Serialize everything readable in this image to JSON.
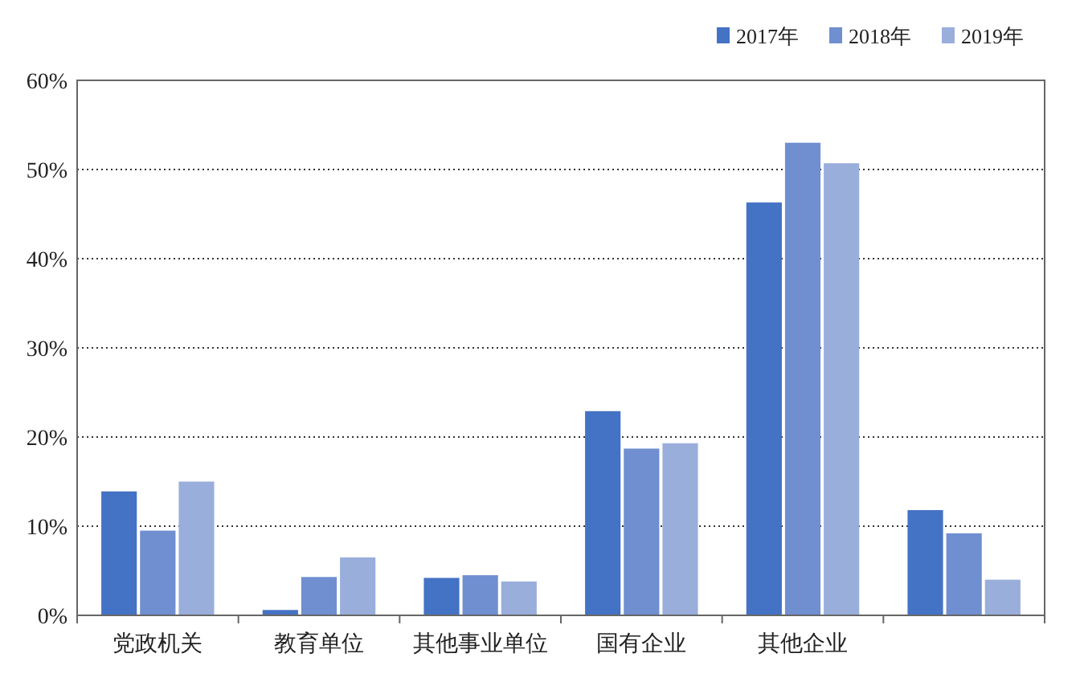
{
  "chart_data": {
    "type": "bar",
    "categories": [
      "党政机关",
      "教育单位",
      "其他事业单位",
      "国有企业",
      "其他企业",
      null
    ],
    "series": [
      {
        "name": "2017年",
        "color": "#4472c4",
        "values": [
          13.9,
          0.6,
          4.2,
          22.9,
          46.3,
          11.8
        ]
      },
      {
        "name": "2018年",
        "color": "#6f8fd0",
        "values": [
          9.5,
          4.3,
          4.5,
          18.7,
          53.0,
          9.2
        ]
      },
      {
        "name": "2019年",
        "color": "#9aaedc",
        "values": [
          15.0,
          6.5,
          3.8,
          19.3,
          50.7,
          4.0
        ]
      }
    ],
    "ylim": [
      0,
      60
    ],
    "yticks": [
      {
        "value": 0,
        "label": "0%"
      },
      {
        "value": 10,
        "label": "10%"
      },
      {
        "value": 20,
        "label": "20%"
      },
      {
        "value": 30,
        "label": "30%"
      },
      {
        "value": 40,
        "label": "40%"
      },
      {
        "value": 50,
        "label": "50%"
      },
      {
        "value": 60,
        "label": "60%"
      }
    ],
    "grid": "y",
    "legend": "top right"
  }
}
